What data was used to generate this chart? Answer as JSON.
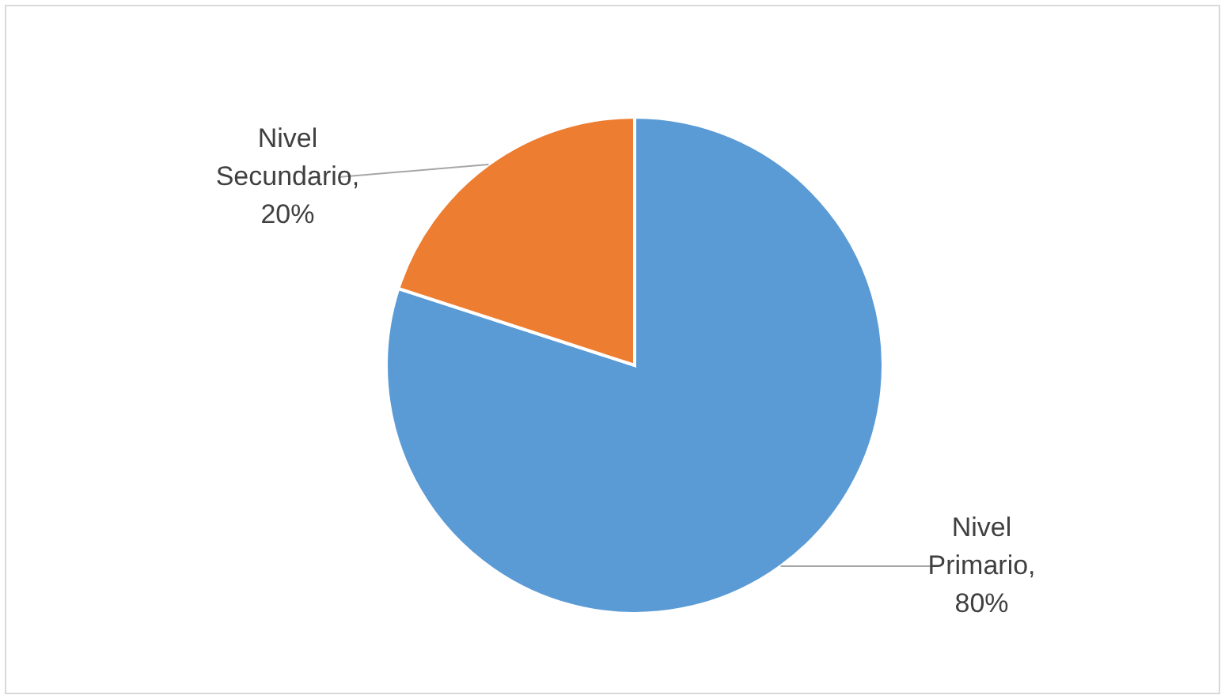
{
  "chart_data": {
    "type": "pie",
    "categories": [
      "Nivel Primario",
      "Nivel Secundario"
    ],
    "values": [
      80,
      20
    ],
    "colors": [
      "#5b9bd5",
      "#ed7d31"
    ],
    "value_labels": [
      ", 80%",
      ", 20%"
    ],
    "legend": false
  }
}
